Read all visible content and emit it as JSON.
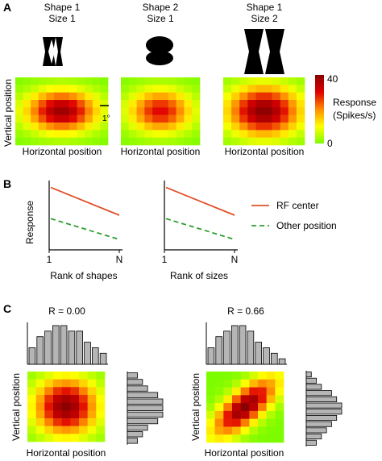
{
  "panel_a": {
    "label": "A",
    "maps": [
      {
        "title_line1": "Shape 1",
        "title_line2": "Size 1",
        "xlabel": "Horizontal position"
      },
      {
        "title_line1": "Shape 2",
        "title_line2": "Size 1",
        "xlabel": "Horizontal position"
      },
      {
        "title_line1": "Shape 1",
        "title_line2": "Size 2",
        "xlabel": "Horizontal position"
      }
    ],
    "ylabel": "Vertical position",
    "scale_bar_label": "1°",
    "colorbar": {
      "max_label": "40",
      "min_label": "0",
      "title_line1": "Response",
      "title_line2": "(Spikes/s)",
      "colors": [
        "#8b0000",
        "#e00000",
        "#ff8c00",
        "#ffff00",
        "#7cfc00"
      ]
    },
    "peak_responses": [
      38,
      30,
      40
    ]
  },
  "panel_b": {
    "label": "B",
    "ylabel": "Response",
    "plots": [
      {
        "xlabel": "Rank of shapes",
        "tick_left": "1",
        "tick_right": "N"
      },
      {
        "xlabel": "Rank of sizes",
        "tick_left": "1",
        "tick_right": "N"
      }
    ],
    "legend": [
      {
        "name": "RF center",
        "color": "#e0502a",
        "style": "solid"
      },
      {
        "name": "Other position",
        "color": "#2e9e2e",
        "style": "dashed"
      }
    ],
    "chart_data": {
      "type": "line",
      "x": [
        1,
        "N"
      ],
      "series": [
        {
          "name": "RF center",
          "values": [
            0.9,
            0.5
          ]
        },
        {
          "name": "Other position",
          "values": [
            0.45,
            0.15
          ]
        }
      ]
    }
  },
  "panel_c": {
    "label": "C",
    "ylabel": "Vertical position",
    "xlabel": "Horizontal position",
    "examples": [
      {
        "title": "R = 0.00",
        "top_hist": [
          3,
          5,
          6,
          7,
          7,
          6,
          6,
          4,
          3,
          2
        ],
        "side_hist": [
          2,
          3,
          4,
          6,
          7,
          7,
          7,
          6,
          4,
          3,
          2
        ]
      },
      {
        "title": "R = 0.66",
        "top_hist": [
          3,
          5,
          6,
          7,
          7,
          6,
          4,
          3,
          2,
          1
        ],
        "side_hist": [
          1,
          2,
          3,
          5,
          6,
          7,
          7,
          6,
          5,
          4,
          3,
          2
        ]
      }
    ]
  }
}
